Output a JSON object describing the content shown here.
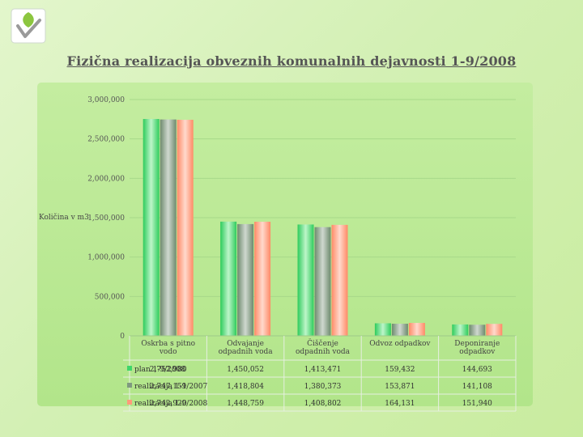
{
  "title": "Fizična realizacija obveznih komunalnih dejavnosti 1-9/2008",
  "logo_icon": "leaf-check-logo-icon",
  "colors": {
    "plan": "#3fd66a",
    "real2007": "#7f9a7f",
    "real2008": "#ff9b7a"
  },
  "chart_data": {
    "type": "bar",
    "ylabel": "Količina v m3",
    "ylim": [
      0,
      3000000
    ],
    "yticks": [
      "0",
      "500,000",
      "1,000,000",
      "1,500,000",
      "2,000,000",
      "2,500,000",
      "3,000,000"
    ],
    "grid": true,
    "categories": [
      "Oskrba s pitno vodo",
      "Odvajanje odpadnih voda",
      "Čiščenje odpadnih voda",
      "Odvoz odpadkov",
      "Deponiranje odpadkov"
    ],
    "series": [
      {
        "name": "plan 1-9/2008",
        "values": [
          2752980,
          1450052,
          1413471,
          159432,
          144693
        ],
        "labels": [
          "2,752,980",
          "1,450,052",
          "1,413,471",
          "159,432",
          "144,693"
        ]
      },
      {
        "name": "realizacija 1-9/2007",
        "values": [
          2747151,
          1418804,
          1380373,
          153871,
          141108
        ],
        "labels": [
          "2,747,151",
          "1,418,804",
          "1,380,373",
          "153,871",
          "141,108"
        ]
      },
      {
        "name": "realizacija 1-9/2008",
        "values": [
          2742920,
          1448759,
          1408802,
          164131,
          151940
        ],
        "labels": [
          "2,742,920",
          "1,448,759",
          "1,408,802",
          "164,131",
          "151,940"
        ]
      }
    ]
  }
}
